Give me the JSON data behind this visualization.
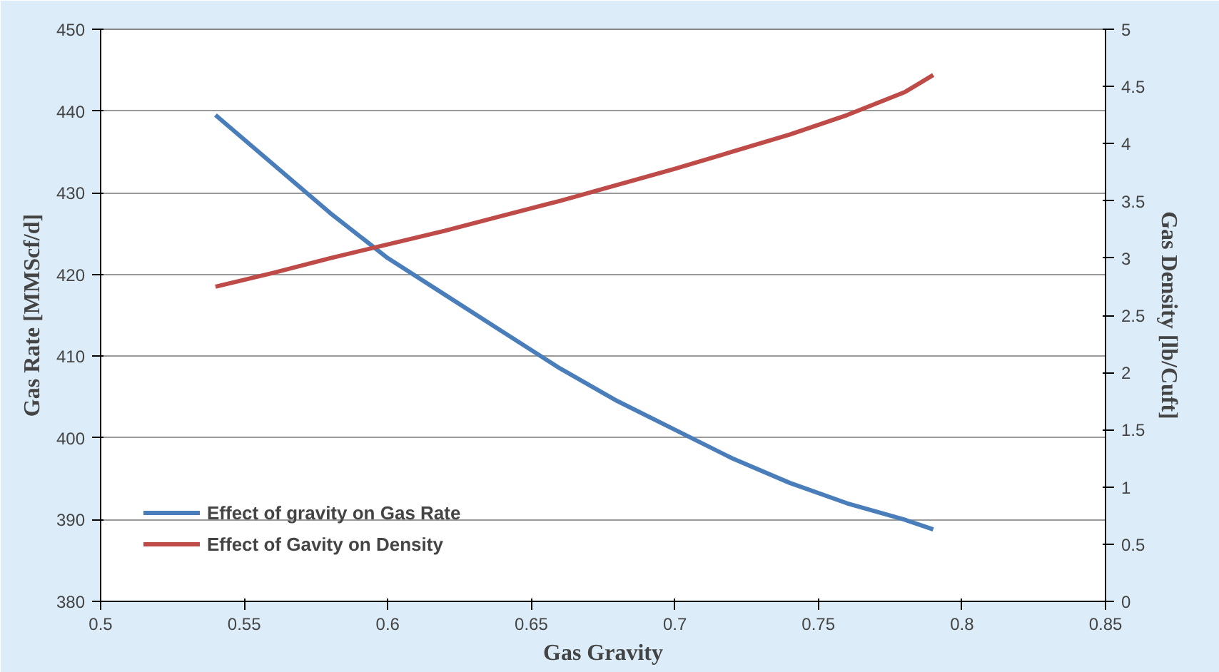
{
  "chart_data": {
    "type": "line",
    "xlabel": "Gas Gravity",
    "ylabel": "Gas Rate [MMScf/d]",
    "y2label": "Gas Density [lb/Cuft]",
    "x": [
      0.54,
      0.56,
      0.58,
      0.6,
      0.62,
      0.64,
      0.66,
      0.68,
      0.7,
      0.72,
      0.74,
      0.76,
      0.78,
      0.79
    ],
    "series": [
      {
        "name": "Effect of gravity on Gas Rate",
        "color": "#4a7ebb",
        "values": [
          439.5,
          433.5,
          427.5,
          422,
          417.5,
          413,
          408.5,
          404.5,
          401,
          397.5,
          394.5,
          392,
          390,
          388.8
        ]
      },
      {
        "name": "Effect of Gavity on Density",
        "color": "#be4b48",
        "axis": "y2",
        "values": [
          2.75,
          2.87,
          3.0,
          3.12,
          3.24,
          3.37,
          3.5,
          3.64,
          3.78,
          3.93,
          4.08,
          4.25,
          4.45,
          4.6
        ]
      }
    ],
    "xlim": [
      0.5,
      0.85
    ],
    "xticks": [
      0.5,
      0.55,
      0.6,
      0.65,
      0.7,
      0.75,
      0.8,
      0.85
    ],
    "ylim": [
      380,
      450
    ],
    "yticks": [
      380,
      390,
      400,
      410,
      420,
      430,
      440,
      450
    ],
    "y2lim": [
      0,
      5
    ],
    "y2ticks": [
      0,
      0.5,
      1,
      1.5,
      2,
      2.5,
      3,
      3.5,
      4,
      4.5,
      5
    ],
    "grid": "y",
    "legend": "bottom left",
    "marker": "none",
    "line_style": "solid"
  }
}
